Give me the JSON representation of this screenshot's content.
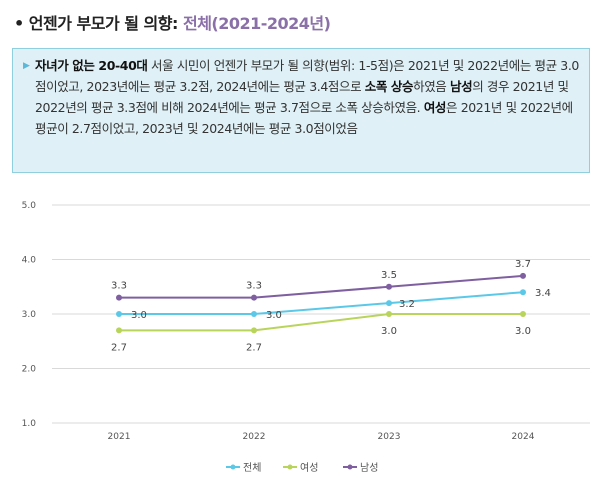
{
  "title": {
    "prefix": "• 언젠가 부모가 될 의향: ",
    "highlight": "전체(2021-2024년)"
  },
  "summary": {
    "arrow_icon": "triangle-right-icon",
    "parts": [
      {
        "text": "자녀가 없는 20-40대",
        "bold": true
      },
      {
        "text": " 서울 시민이 언젠가 부모가 될 의향(범위: 1-5점)은 2021년 및 2022년에는 평균 3.0점이었고, 2023년에는 평균 3.2점, 2024년에는 평균 3.4점으로 ",
        "bold": false
      },
      {
        "text": "소폭 상승",
        "bold": true
      },
      {
        "text": "하였음 ",
        "bold": false
      },
      {
        "text": "남성",
        "bold": true
      },
      {
        "text": "의 경우 2021년 및 2022년의 평균 3.3점에 비해 2024년에는 평균 3.7점으로 소폭 상승하였음. ",
        "bold": false
      },
      {
        "text": "여성",
        "bold": true
      },
      {
        "text": "은 2021년 및 2022년에 평균이 2.7점이었고, 2023년 및 2024년에는 평균 3.0점이었음",
        "bold": false
      }
    ]
  },
  "chart_data": {
    "type": "line",
    "categories": [
      "2021",
      "2022",
      "2023",
      "2024"
    ],
    "ylim": [
      1.0,
      5.0
    ],
    "yticks": [
      "1.0",
      "2.0",
      "3.0",
      "4.0",
      "5.0"
    ],
    "grid": true,
    "legend_position": "bottom",
    "series": [
      {
        "name": "전체",
        "color": "#5bc8e8",
        "values": [
          3.0,
          3.0,
          3.2,
          3.4
        ],
        "labels": [
          "3.0",
          "3.0",
          "3.2",
          "3.4"
        ],
        "label_pos": "right"
      },
      {
        "name": "여성",
        "color": "#b9d45a",
        "values": [
          2.7,
          2.7,
          3.0,
          3.0
        ],
        "labels": [
          "2.7",
          "2.7",
          "3.0",
          "3.0"
        ],
        "label_pos": "below"
      },
      {
        "name": "남성",
        "color": "#7f5fa0",
        "values": [
          3.3,
          3.3,
          3.5,
          3.7
        ],
        "labels": [
          "3.3",
          "3.3",
          "3.5",
          "3.7"
        ],
        "label_pos": "above"
      }
    ]
  }
}
